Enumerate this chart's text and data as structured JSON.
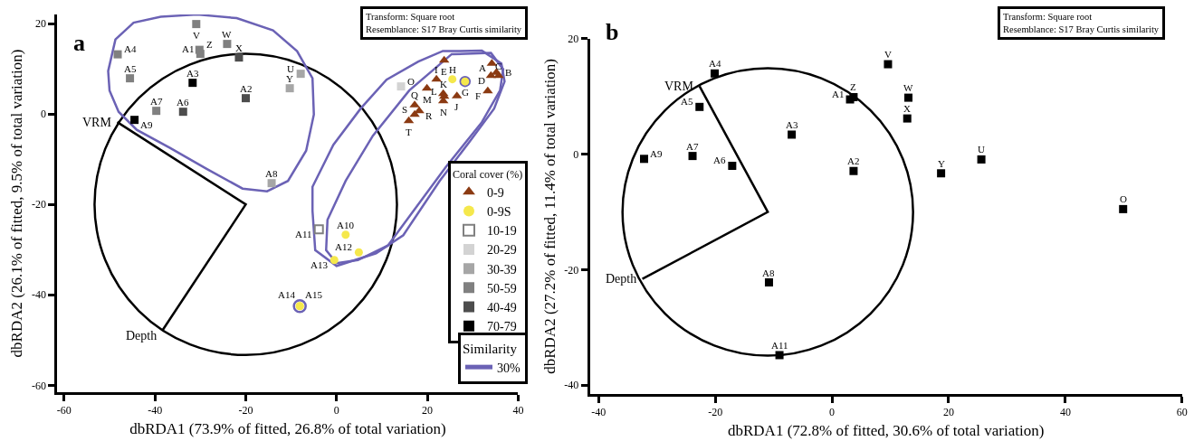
{
  "chart_data": [
    {
      "type": "scatter",
      "xlabel": "dbRDA1 (73.9% of fitted, 26.8% of total variation)",
      "ylabel": "dbRDA2 (26.1% of fitted, 9.5% of total variation)",
      "legend_title": "Coral cover (%)",
      "legend": "bottom right",
      "xlim": [
        -61.5,
        40
      ],
      "ylim": [
        -61.5,
        22
      ],
      "xticks": [
        -60,
        -40,
        -20,
        0,
        20,
        40
      ],
      "yticks": [
        -60,
        -40,
        -20,
        0,
        20
      ],
      "series": [
        {
          "name": "0-9",
          "color": "#8b3a12",
          "marker": "triangle",
          "x": [
            34.2,
            35.2,
            35.7,
            34,
            23.7,
            33.3,
            22,
            26.5,
            23.5,
            23.7,
            19.9,
            23.5,
            17.2,
            18.2,
            17.2,
            15.9
          ],
          "values": [
            11.2,
            9.2,
            8.5,
            8.5,
            11.9,
            5.1,
            7.7,
            4,
            4.5,
            3.9,
            5.7,
            2.9,
            2,
            0.7,
            -0.1,
            -1.5
          ]
        },
        {
          "name": "0-9S",
          "color": "#f5e84c",
          "marker": "circle",
          "x": [
            25.5,
            28.3,
            2,
            4.9,
            -0.5,
            -8.1,
            -8.1
          ],
          "values": [
            7.7,
            7.2,
            -26.7,
            -30.6,
            -32.3,
            -42.5,
            -42.5
          ]
        },
        {
          "name": "10-19",
          "color": "#808080",
          "marker": "square-open",
          "x": [
            -3.9
          ],
          "values": [
            -25.5
          ]
        },
        {
          "name": "20-29",
          "color": "#d3d3d3",
          "marker": "square",
          "x": [
            14.2
          ],
          "values": [
            6.1
          ]
        },
        {
          "name": "30-39",
          "color": "#a6a6a6",
          "marker": "square",
          "x": [
            -7.9,
            -10.3,
            -14.3
          ],
          "values": [
            8.9,
            5.7,
            -15.3
          ]
        },
        {
          "name": "50-59",
          "color": "#808080",
          "marker": "square",
          "x": [
            -30.9,
            -24.1,
            -30.2,
            -30,
            -48.2,
            -45.5,
            -39.7
          ],
          "values": [
            19.9,
            15.5,
            14.2,
            13.3,
            13.2,
            7.9,
            0.7
          ]
        },
        {
          "name": "40-49",
          "color": "#4d4d4d",
          "marker": "square",
          "x": [
            -21.5,
            -20,
            -33.8
          ],
          "values": [
            12.5,
            3.5,
            0.5
          ]
        },
        {
          "name": "70-79",
          "color": "#000000",
          "marker": "square",
          "x": [
            -31.7,
            -44.5
          ],
          "values": [
            6.9,
            -1.3
          ]
        }
      ],
      "annotations": [
        "a",
        "Transform: Square root\nResemblance: S17 Bray Curtis similarity",
        "Similarity",
        "30%",
        "VRM",
        "Depth",
        {
          "text": "A4",
          "x": -48.2,
          "y": 13.2
        },
        {
          "text": "A5",
          "x": -45.5,
          "y": 7.9
        },
        {
          "text": "V",
          "x": -30.9,
          "y": 19.9
        },
        {
          "text": "W",
          "x": -24.1,
          "y": 15.5
        },
        {
          "text": "Z",
          "x": -30.2,
          "y": 14.2
        },
        {
          "text": "A1",
          "x": -30,
          "y": 13.3
        },
        {
          "text": "X",
          "x": -21.5,
          "y": 12.5
        },
        {
          "text": "A3",
          "x": -31.7,
          "y": 6.9
        },
        {
          "text": "U",
          "x": -7.9,
          "y": 8.9
        },
        {
          "text": "Y",
          "x": -10.3,
          "y": 5.7
        },
        {
          "text": "A2",
          "x": -20,
          "y": 3.5
        },
        {
          "text": "A7",
          "x": -39.7,
          "y": 0.7
        },
        {
          "text": "A6",
          "x": -33.8,
          "y": 0.5
        },
        {
          "text": "A9",
          "x": -44.5,
          "y": -1.3
        },
        {
          "text": "A8",
          "x": -14.3,
          "y": -15.3
        },
        {
          "text": "E",
          "x": 23.7,
          "y": 11.9
        },
        {
          "text": "A",
          "x": 34.2,
          "y": 11.2
        },
        {
          "text": "B",
          "x": 35.2,
          "y": 9.2
        },
        {
          "text": "C",
          "x": 35.7,
          "y": 8.5
        },
        {
          "text": "D",
          "x": 34,
          "y": 8.5
        },
        {
          "text": "F",
          "x": 33.3,
          "y": 5.1
        },
        {
          "text": "I",
          "x": 22,
          "y": 7.7
        },
        {
          "text": "H",
          "x": 25.5,
          "y": 7.7
        },
        {
          "text": "G",
          "x": 28.3,
          "y": 7.2
        },
        {
          "text": "M",
          "x": 19.9,
          "y": 5.7
        },
        {
          "text": "O",
          "x": 14.2,
          "y": 6.1
        },
        {
          "text": "K",
          "x": 23.5,
          "y": 4.5
        },
        {
          "text": "J",
          "x": 26.5,
          "y": 4
        },
        {
          "text": "L",
          "x": 23.7,
          "y": 3.9
        },
        {
          "text": "N",
          "x": 23.5,
          "y": 2.9
        },
        {
          "text": "Q",
          "x": 17.2,
          "y": 2
        },
        {
          "text": "R",
          "x": 18.2,
          "y": 0.7
        },
        {
          "text": "S",
          "x": 17.2,
          "y": -0.1
        },
        {
          "text": "T",
          "x": 15.9,
          "y": -1.5
        },
        {
          "text": "A11",
          "x": -3.9,
          "y": -25.5
        },
        {
          "text": "A10",
          "x": 2,
          "y": -26.7
        },
        {
          "text": "A12",
          "x": 4.9,
          "y": -30.6
        },
        {
          "text": "A13",
          "x": -0.5,
          "y": -32.3
        },
        {
          "text": "A15",
          "x": -8.1,
          "y": -42.5
        },
        {
          "text": "A14",
          "x": -8.1,
          "y": -42.5
        }
      ]
    },
    {
      "type": "scatter",
      "xlabel": "dbRDA1 (72.8% of fitted, 30.6% of total variation)",
      "ylabel": "dbRDA2 (27.2% of fitted, 11.4% of total variation)",
      "xlim": [
        -41.5,
        60
      ],
      "ylim": [
        -41.5,
        20
      ],
      "xticks": [
        -40,
        -20,
        0,
        20,
        40,
        60
      ],
      "yticks": [
        -40,
        -20,
        0,
        20
      ],
      "series": [
        {
          "color": "#000000",
          "marker": "square",
          "x": [
            -20.1,
            -22.7,
            -32.2,
            -23.9,
            -17.1,
            -6.9,
            3.1,
            3.7,
            3.7,
            9.6,
            13.1,
            12.9,
            25.6,
            18.7,
            49.9,
            -10.8,
            -9.0
          ],
          "values": [
            14.0,
            8.2,
            -0.8,
            -0.3,
            -2.0,
            3.4,
            9.5,
            9.9,
            -2.9,
            15.6,
            9.8,
            6.2,
            -0.9,
            -3.3,
            -9.5,
            -22.2,
            -34.8
          ]
        }
      ],
      "annotations": [
        "b",
        "Transform: Square root\nResemblance: S17 Bray Curtis similarity",
        "VRM",
        "Depth",
        {
          "text": "A4",
          "x": -20.1,
          "y": 14.0
        },
        {
          "text": "A5",
          "x": -22.7,
          "y": 8.2
        },
        {
          "text": "A9",
          "x": -32.2,
          "y": -0.8
        },
        {
          "text": "A7",
          "x": -23.9,
          "y": -0.3
        },
        {
          "text": "A6",
          "x": -17.1,
          "y": -2.0
        },
        {
          "text": "A3",
          "x": -6.9,
          "y": 3.4
        },
        {
          "text": "A1",
          "x": 3.1,
          "y": 9.5
        },
        {
          "text": "Z",
          "x": 3.7,
          "y": 9.9
        },
        {
          "text": "A2",
          "x": 3.7,
          "y": -2.9
        },
        {
          "text": "V",
          "x": 9.6,
          "y": 15.6
        },
        {
          "text": "W",
          "x": 13.1,
          "y": 9.8
        },
        {
          "text": "X",
          "x": 12.9,
          "y": 6.2
        },
        {
          "text": "U",
          "x": 25.6,
          "y": -0.9
        },
        {
          "text": "Y",
          "x": 18.7,
          "y": -3.3
        },
        {
          "text": "O",
          "x": 49.9,
          "y": -9.5
        },
        {
          "text": "A8",
          "x": -10.8,
          "y": -22.2
        },
        {
          "text": "A11",
          "x": -9.0,
          "y": -34.8
        }
      ]
    }
  ]
}
